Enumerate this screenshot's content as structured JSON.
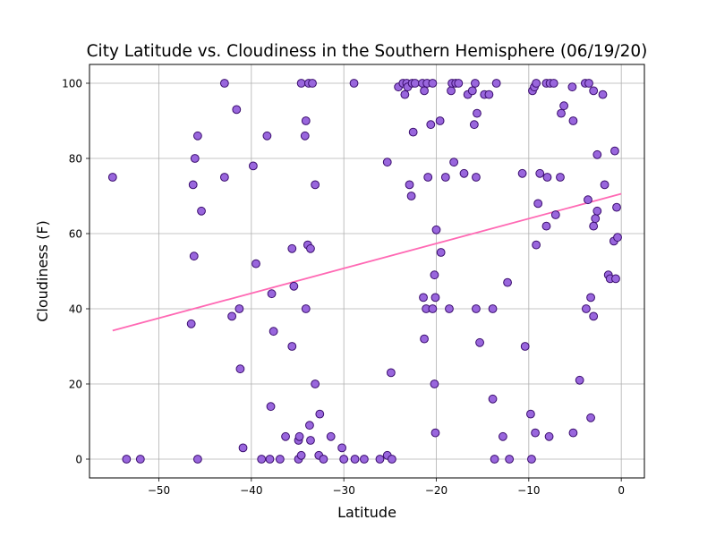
{
  "chart_data": {
    "type": "scatter",
    "title": "City Latitude vs. Cloudiness in the Southern Hemisphere (06/19/20)",
    "xlabel": "Latitude",
    "ylabel": "Cloudiness (F)",
    "xlim": [
      -57.5,
      2.5
    ],
    "ylim": [
      -5,
      105
    ],
    "xticks": [
      -50,
      -40,
      -30,
      -20,
      -10,
      0
    ],
    "xtick_labels": [
      "−50",
      "−40",
      "−30",
      "−20",
      "−10",
      "0"
    ],
    "yticks": [
      0,
      20,
      40,
      60,
      80,
      100
    ],
    "ytick_labels": [
      "0",
      "20",
      "40",
      "60",
      "80",
      "100"
    ],
    "grid": true,
    "marker_fill": "#9966dd",
    "marker_edge": "#3a0d6e",
    "regression_color": "#ff69b4",
    "regression_line": {
      "x": [
        -55,
        0
      ],
      "y": [
        34.2,
        70.6
      ]
    },
    "points": [
      [
        -55,
        75
      ],
      [
        -53.5,
        0
      ],
      [
        -52,
        0
      ],
      [
        -46.5,
        36
      ],
      [
        -46.3,
        73
      ],
      [
        -46.2,
        54
      ],
      [
        -46.1,
        80
      ],
      [
        -45.8,
        86
      ],
      [
        -45.8,
        0
      ],
      [
        -45.4,
        66
      ],
      [
        -42.9,
        100
      ],
      [
        -42.9,
        75
      ],
      [
        -42.1,
        38
      ],
      [
        -41.6,
        93
      ],
      [
        -41.3,
        40
      ],
      [
        -41.2,
        24
      ],
      [
        -40.9,
        3
      ],
      [
        -39.8,
        78
      ],
      [
        -39.5,
        52
      ],
      [
        -38.9,
        0
      ],
      [
        -38.3,
        86
      ],
      [
        -38,
        0
      ],
      [
        -37.9,
        14
      ],
      [
        -37.8,
        44
      ],
      [
        -37.6,
        34
      ],
      [
        -36.9,
        0
      ],
      [
        -36.3,
        6
      ],
      [
        -35.6,
        56
      ],
      [
        -35.6,
        30
      ],
      [
        -35.4,
        46
      ],
      [
        -34.9,
        0
      ],
      [
        -34.9,
        5
      ],
      [
        -34.8,
        6
      ],
      [
        -34.6,
        100
      ],
      [
        -34.6,
        1
      ],
      [
        -34.2,
        86
      ],
      [
        -34.1,
        90
      ],
      [
        -34.1,
        40
      ],
      [
        -33.9,
        57
      ],
      [
        -33.8,
        100
      ],
      [
        -33.7,
        9
      ],
      [
        -33.6,
        56
      ],
      [
        -33.6,
        5
      ],
      [
        -33.4,
        100
      ],
      [
        -33.1,
        73
      ],
      [
        -33.1,
        20
      ],
      [
        -32.7,
        1
      ],
      [
        -32.6,
        12
      ],
      [
        -32.2,
        0
      ],
      [
        -31.4,
        6
      ],
      [
        -30.2,
        3
      ],
      [
        -30,
        0
      ],
      [
        -28.9,
        100
      ],
      [
        -28.8,
        0
      ],
      [
        -27.8,
        0
      ],
      [
        -26.1,
        0
      ],
      [
        -25.3,
        79
      ],
      [
        -25.3,
        1
      ],
      [
        -24.9,
        23
      ],
      [
        -24.8,
        0
      ],
      [
        -24.1,
        99
      ],
      [
        -23.6,
        100
      ],
      [
        -23.4,
        97
      ],
      [
        -23.2,
        100
      ],
      [
        -23.1,
        99
      ],
      [
        -22.9,
        73
      ],
      [
        -22.7,
        70
      ],
      [
        -22.6,
        100
      ],
      [
        -22.5,
        87
      ],
      [
        -22.3,
        100
      ],
      [
        -21.5,
        100
      ],
      [
        -21.4,
        43
      ],
      [
        -21.3,
        32
      ],
      [
        -21.3,
        98
      ],
      [
        -21.1,
        40
      ],
      [
        -21,
        100
      ],
      [
        -20.9,
        75
      ],
      [
        -20.6,
        89
      ],
      [
        -20.4,
        100
      ],
      [
        -20.4,
        40
      ],
      [
        -20.2,
        20
      ],
      [
        -20.2,
        49
      ],
      [
        -20.1,
        43
      ],
      [
        -20.1,
        7
      ],
      [
        -20,
        61
      ],
      [
        -19.6,
        90
      ],
      [
        -19.5,
        55
      ],
      [
        -19,
        75
      ],
      [
        -18.6,
        40
      ],
      [
        -18.4,
        98
      ],
      [
        -18.3,
        100
      ],
      [
        -18.1,
        79
      ],
      [
        -17.9,
        100
      ],
      [
        -17.6,
        100
      ],
      [
        -17,
        76
      ],
      [
        -16.6,
        97
      ],
      [
        -16.1,
        98
      ],
      [
        -15.9,
        89
      ],
      [
        -15.8,
        100
      ],
      [
        -15.7,
        75
      ],
      [
        -15.7,
        40
      ],
      [
        -15.6,
        92
      ],
      [
        -15.3,
        31
      ],
      [
        -14.8,
        97
      ],
      [
        -14.3,
        97
      ],
      [
        -13.9,
        40
      ],
      [
        -13.9,
        16
      ],
      [
        -13.7,
        0
      ],
      [
        -13.5,
        100
      ],
      [
        -12.8,
        6
      ],
      [
        -12.3,
        47
      ],
      [
        -12.1,
        0
      ],
      [
        -10.7,
        76
      ],
      [
        -10.4,
        30
      ],
      [
        -9.8,
        12
      ],
      [
        -9.7,
        0
      ],
      [
        -9.6,
        98
      ],
      [
        -9.4,
        99
      ],
      [
        -9.3,
        7
      ],
      [
        -9.2,
        100
      ],
      [
        -9.2,
        57
      ],
      [
        -9,
        68
      ],
      [
        -8.8,
        76
      ],
      [
        -8.1,
        100
      ],
      [
        -8.1,
        62
      ],
      [
        -8,
        75
      ],
      [
        -7.8,
        6
      ],
      [
        -7.7,
        100
      ],
      [
        -7.3,
        100
      ],
      [
        -7.1,
        65
      ],
      [
        -6.6,
        75
      ],
      [
        -6.5,
        92
      ],
      [
        -6.2,
        94
      ],
      [
        -5.3,
        99
      ],
      [
        -5.2,
        7
      ],
      [
        -5.2,
        90
      ],
      [
        -4.5,
        21
      ],
      [
        -3.9,
        100
      ],
      [
        -3.8,
        40
      ],
      [
        -3.6,
        69
      ],
      [
        -3.5,
        100
      ],
      [
        -3.3,
        43
      ],
      [
        -3.3,
        11
      ],
      [
        -3,
        98
      ],
      [
        -3,
        62
      ],
      [
        -3,
        38
      ],
      [
        -2.8,
        64
      ],
      [
        -2.6,
        81
      ],
      [
        -2.6,
        66
      ],
      [
        -2,
        97
      ],
      [
        -1.8,
        73
      ],
      [
        -1.4,
        49
      ],
      [
        -1.2,
        48
      ],
      [
        -0.8,
        58
      ],
      [
        -0.7,
        82
      ],
      [
        -0.6,
        48
      ],
      [
        -0.5,
        67
      ],
      [
        -0.4,
        59
      ]
    ]
  }
}
